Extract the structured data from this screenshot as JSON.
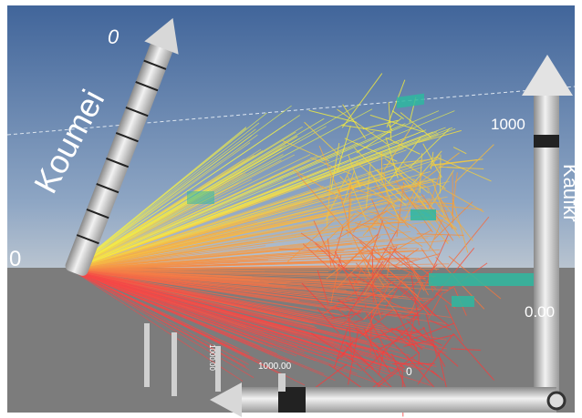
{
  "scene": {
    "left_axis": {
      "title": "Koumei",
      "min_label": "0",
      "far_label": "0"
    },
    "right_axis": {
      "title": "Kaufkr",
      "max_label": "1000",
      "min_label": "0.00"
    },
    "bottom_axis": {
      "max_label": "1000.00",
      "min_label": "0"
    },
    "mini_axes": {
      "label": "1000.00"
    }
  }
}
